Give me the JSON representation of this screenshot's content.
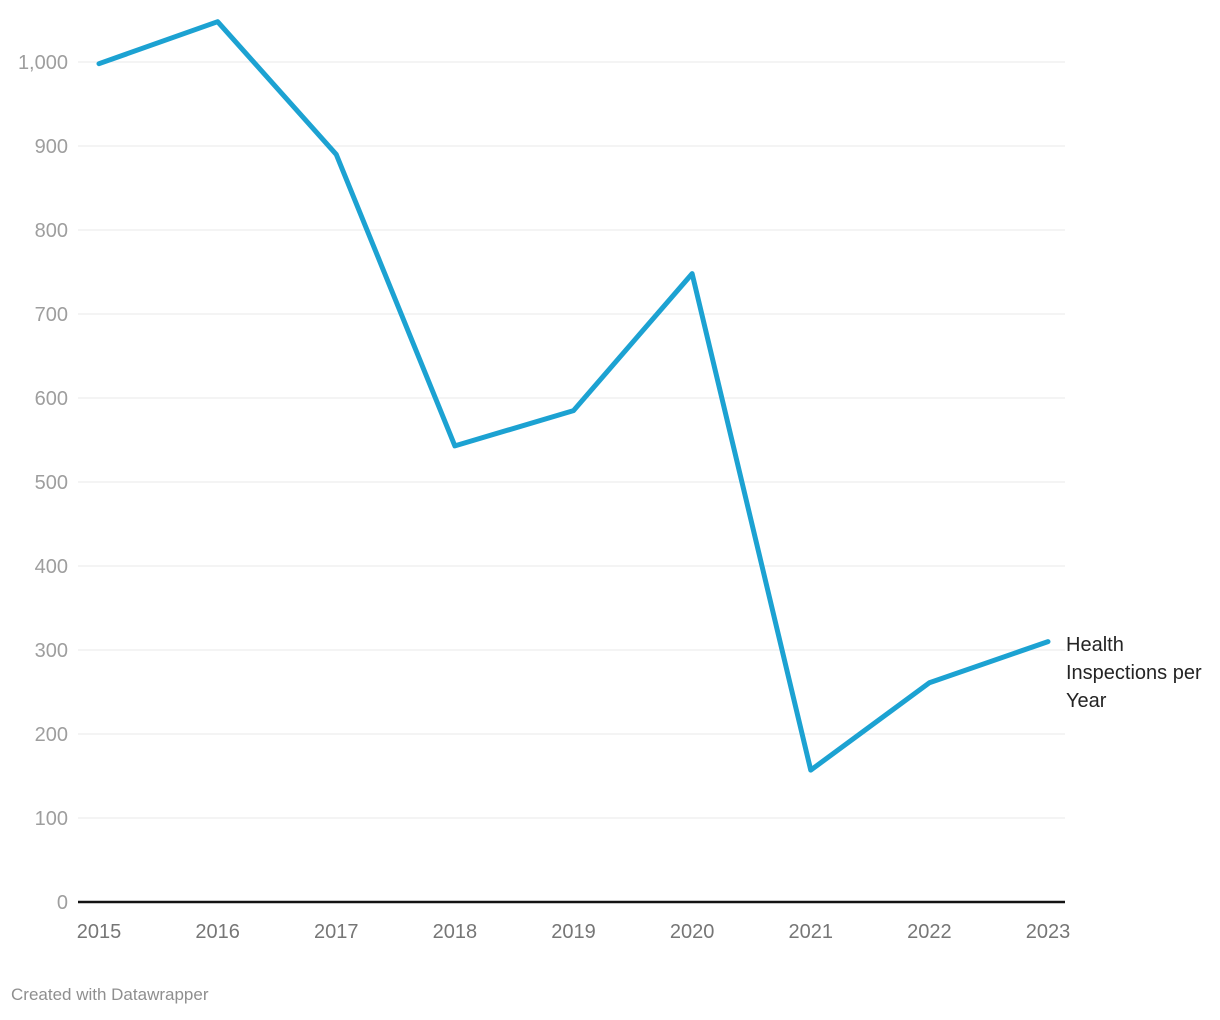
{
  "chart_data": {
    "type": "line",
    "title": "",
    "x": [
      "2015",
      "2016",
      "2017",
      "2018",
      "2019",
      "2020",
      "2021",
      "2022",
      "2023"
    ],
    "series": [
      {
        "name": "Health Inspections per Year",
        "values": [
          998,
          1048,
          890,
          543,
          585,
          748,
          157,
          261,
          310
        ],
        "color": "#1ca2d2"
      }
    ],
    "ylim": [
      0,
      1058
    ],
    "yticks": [
      0,
      100,
      200,
      300,
      400,
      500,
      600,
      700,
      800,
      900,
      1000
    ],
    "ytick_labels": [
      "0",
      "100",
      "200",
      "300",
      "400",
      "500",
      "600",
      "700",
      "800",
      "900",
      "1,000"
    ],
    "xlabel": "",
    "ylabel": "",
    "grid": "horizontal",
    "legend_position": "line-end-label"
  },
  "footer": {
    "credit": "Created with Datawrapper"
  },
  "colors": {
    "line": "#1ca2d2",
    "grid": "#e8e8e8",
    "axis": "#131313",
    "y_tick_text": "#9e9e9e",
    "x_tick_text": "#767676",
    "label_text": "#242424",
    "credit_text": "#8f8f8f",
    "background": "#ffffff"
  }
}
